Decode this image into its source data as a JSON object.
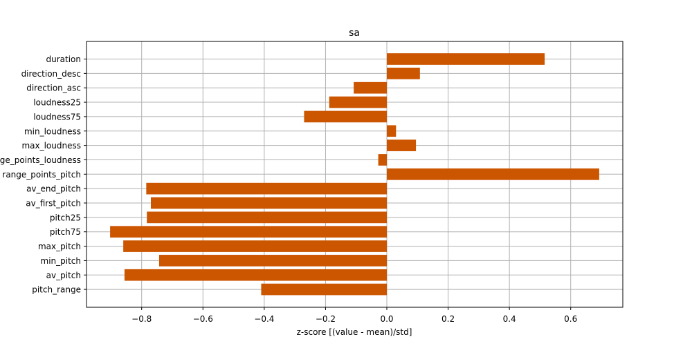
{
  "chart_data": {
    "type": "bar",
    "orientation": "horizontal",
    "title": "sa",
    "xlabel": "z-score [(value - mean)/std]",
    "ylabel": "",
    "xlim": [
      -0.98,
      0.77
    ],
    "x_ticks": [
      -0.8,
      -0.6,
      -0.4,
      -0.2,
      0.0,
      0.2,
      0.4,
      0.6
    ],
    "x_tick_labels": [
      "−0.8",
      "−0.6",
      "−0.4",
      "−0.2",
      "0.0",
      "0.2",
      "0.4",
      "0.6"
    ],
    "grid": true,
    "legend": "none",
    "bar_color": "#cc5500",
    "categories": [
      "duration",
      "direction_desc",
      "direction_asc",
      "loudness25",
      "loudness75",
      "min_loudness",
      "max_loudness",
      "range_points_loudness",
      "range_points_pitch",
      "av_end_pitch",
      "av_first_pitch",
      "pitch25",
      "pitch75",
      "max_pitch",
      "min_pitch",
      "av_pitch",
      "pitch_range"
    ],
    "values": [
      0.515,
      0.108,
      -0.108,
      -0.188,
      -0.27,
      0.03,
      0.095,
      -0.028,
      0.693,
      -0.785,
      -0.77,
      -0.783,
      -0.903,
      -0.86,
      -0.743,
      -0.856,
      -0.41
    ]
  }
}
